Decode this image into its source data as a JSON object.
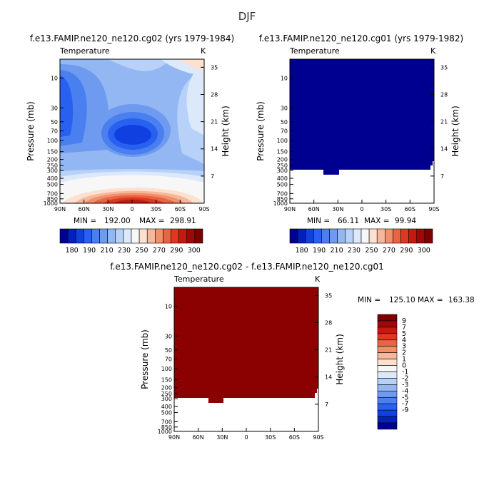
{
  "figure": {
    "title": "DJF",
    "colors": {
      "ramp_cool_to_warm": [
        "#000090",
        "#0020c0",
        "#1040e0",
        "#2860f0",
        "#4a7ff0",
        "#6e9af0",
        "#93b7f2",
        "#b8d1f8",
        "#dce9fb",
        "#f7f7f7",
        "#fde0d0",
        "#f7b79a",
        "#f0906a",
        "#ea6442",
        "#e03820",
        "#c31a10",
        "#a00808",
        "#7d0000"
      ]
    }
  },
  "chart_data": [
    {
      "type": "contour",
      "panel": "top-left",
      "title": "f.e13.FAMIP.ne120_ne120.cg02 (yrs 1979-1984)",
      "left_label": "Temperature",
      "right_label": "K",
      "xlabel": "",
      "ylabel": "Pressure (mb)",
      "ylabel_right": "Height (km)",
      "x_tick_labels": [
        "90N",
        "60N",
        "30N",
        "0",
        "30S",
        "60S",
        "90S"
      ],
      "x_values": [
        90,
        60,
        30,
        0,
        -30,
        -60,
        -90
      ],
      "y_tick_labels": [
        "10",
        "30",
        "50",
        "70",
        "100",
        "150",
        "200",
        "250",
        "300",
        "400",
        "500",
        "700",
        "850",
        "1000"
      ],
      "y_values": [
        10,
        30,
        50,
        70,
        100,
        150,
        200,
        250,
        300,
        400,
        500,
        700,
        850,
        1000
      ],
      "ylim": [
        5,
        1000
      ],
      "height_tick_labels": [
        "35",
        "28",
        "21",
        "14",
        "7"
      ],
      "height_values": [
        35,
        28,
        21,
        14,
        7
      ],
      "stats": {
        "min_label": "MIN =",
        "min": "192.00",
        "max_label": "MAX =",
        "max": "298.91"
      },
      "colorbar": {
        "orientation": "horizontal",
        "labels": [
          "180",
          "190",
          "210",
          "230",
          "250",
          "270",
          "290",
          "300"
        ]
      },
      "contour_levels": [
        180,
        185,
        190,
        200,
        210,
        220,
        230,
        240,
        250,
        260,
        270,
        280,
        290,
        295,
        300
      ],
      "approx_fields": "cold cores near 60N upper levels and 20N-20S 70-150 mb (~192 K); warm tropical surface (~299 K)"
    },
    {
      "type": "contour",
      "panel": "top-right",
      "title": "f.e13.FAMIP.ne120_ne120.cg01 (yrs 1979-1982)",
      "left_label": "Temperature",
      "right_label": "K",
      "xlabel": "",
      "ylabel": "Pressure (mb)",
      "ylabel_right": "Height (km)",
      "x_tick_labels": [
        "90N",
        "60N",
        "30N",
        "0",
        "30S",
        "60S",
        "90S"
      ],
      "x_values": [
        90,
        60,
        30,
        0,
        -30,
        -60,
        -90
      ],
      "y_tick_labels": [
        "10",
        "30",
        "50",
        "70",
        "100",
        "150",
        "200",
        "250",
        "300",
        "400",
        "500",
        "700",
        "850",
        "1000"
      ],
      "y_values": [
        10,
        30,
        50,
        70,
        100,
        150,
        200,
        250,
        300,
        400,
        500,
        700,
        850,
        1000
      ],
      "ylim": [
        5,
        1000
      ],
      "height_tick_labels": [
        "35",
        "28",
        "21",
        "14",
        "7"
      ],
      "height_values": [
        35,
        28,
        21,
        14,
        7
      ],
      "stats": {
        "min_label": "MIN =",
        "min": "66.11",
        "max_label": "MAX =",
        "max": "99.94"
      },
      "colorbar": {
        "orientation": "horizontal",
        "labels": [
          "180",
          "190",
          "210",
          "230",
          "250",
          "270",
          "290",
          "300"
        ]
      },
      "approx_fields": "uniform field below colorbar minimum from top down to ~300 mb; no data below"
    },
    {
      "type": "contour",
      "panel": "bottom-center",
      "title": "f.e13.FAMIP.ne120_ne120.cg02 - f.e13.FAMIP.ne120_ne120.cg01",
      "left_label": "Temperature",
      "right_label": "K",
      "xlabel": "",
      "ylabel": "Pressure (mb)",
      "ylabel_right": "Height (km)",
      "x_tick_labels": [
        "90N",
        "60N",
        "30N",
        "0",
        "30S",
        "60S",
        "90S"
      ],
      "x_values": [
        90,
        60,
        30,
        0,
        -30,
        -60,
        -90
      ],
      "y_tick_labels": [
        "10",
        "30",
        "50",
        "70",
        "100",
        "150",
        "200",
        "250",
        "300",
        "400",
        "500",
        "700",
        "850",
        "1000"
      ],
      "y_values": [
        10,
        30,
        50,
        70,
        100,
        150,
        200,
        250,
        300,
        400,
        500,
        700,
        850,
        1000
      ],
      "ylim": [
        5,
        1000
      ],
      "height_tick_labels": [
        "35",
        "28",
        "21",
        "14",
        "7"
      ],
      "height_values": [
        35,
        28,
        21,
        14,
        7
      ],
      "stats": {
        "min_label": "MIN =",
        "min": "125.10",
        "max_label": "MAX =",
        "max": "163.38"
      },
      "colorbar": {
        "orientation": "vertical",
        "labels": [
          "9",
          "7",
          "5",
          "4",
          "3",
          "2",
          "1",
          "0",
          "-1",
          "-2",
          "-3",
          "-4",
          "-5",
          "-7",
          "-9"
        ]
      },
      "approx_fields": "uniform difference above colorbar maximum from top down to ~300 mb; no data below"
    }
  ]
}
